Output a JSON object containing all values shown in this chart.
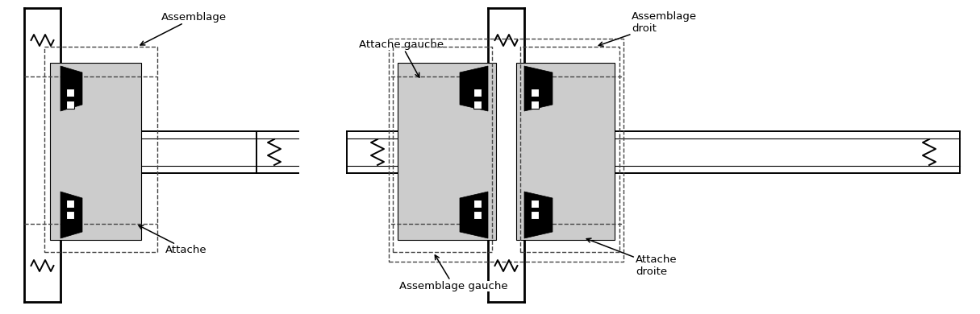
{
  "bg_color": "#ffffff",
  "line_color": "#000000",
  "gray_fill": "#cccccc",
  "dashed_color": "#444444",
  "fig_width": 12.15,
  "fig_height": 3.9,
  "lw_thick": 2.0,
  "lw_main": 1.4,
  "lw_thin": 0.8,
  "lw_dash": 1.0,
  "labels": {
    "assemblage1": "Assemblage",
    "attache1": "Attache",
    "attache_gauche": "Attache gauche",
    "assemblage_droit": "Assemblage\ndroit",
    "assemblage_gauche": "Assemblage gauche",
    "attache_droite": "Attache\ndroite"
  }
}
